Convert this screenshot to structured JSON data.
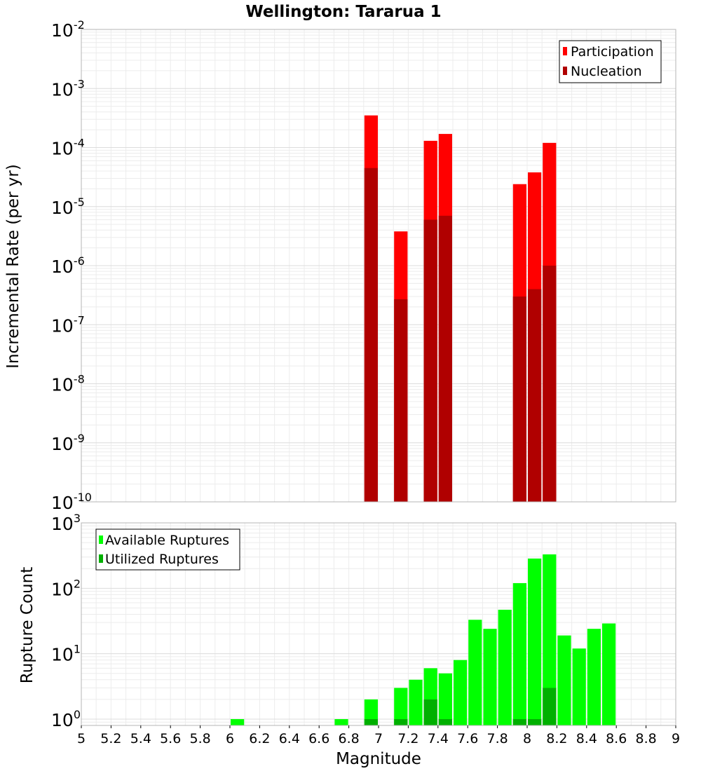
{
  "chart_data": [
    {
      "type": "bar",
      "title": "Wellington: Tararua 1",
      "xlabel": "Magnitude",
      "ylabel": "Incremental Rate (per yr)",
      "y_scale": "log",
      "xlim": [
        5,
        9
      ],
      "ylim": [
        1e-10,
        0.01
      ],
      "grid": true,
      "legend_position": "top-right",
      "y_tick_labels": [
        {
          "base": "10",
          "exp": "-2"
        },
        {
          "base": "10",
          "exp": "-3"
        },
        {
          "base": "10",
          "exp": "-4"
        },
        {
          "base": "10",
          "exp": "-5"
        },
        {
          "base": "10",
          "exp": "-6"
        },
        {
          "base": "10",
          "exp": "-7"
        },
        {
          "base": "10",
          "exp": "-8"
        },
        {
          "base": "10",
          "exp": "-9"
        },
        {
          "base": "10",
          "exp": "-10"
        }
      ],
      "series": [
        {
          "name": "Participation",
          "color": "#ff0000",
          "points": [
            {
              "x": 6.95,
              "y": 0.00035
            },
            {
              "x": 7.15,
              "y": 3.8e-06
            },
            {
              "x": 7.35,
              "y": 0.00013
            },
            {
              "x": 7.45,
              "y": 0.00017
            },
            {
              "x": 7.95,
              "y": 2.4e-05
            },
            {
              "x": 8.05,
              "y": 3.8e-05
            },
            {
              "x": 8.15,
              "y": 0.00012
            }
          ]
        },
        {
          "name": "Nucleation",
          "color": "#b00000",
          "points": [
            {
              "x": 6.95,
              "y": 4.5e-05
            },
            {
              "x": 7.15,
              "y": 2.7e-07
            },
            {
              "x": 7.35,
              "y": 6e-06
            },
            {
              "x": 7.45,
              "y": 7e-06
            },
            {
              "x": 7.95,
              "y": 3e-07
            },
            {
              "x": 8.05,
              "y": 4e-07
            },
            {
              "x": 8.15,
              "y": 1e-06
            }
          ]
        }
      ]
    },
    {
      "type": "bar",
      "xlabel": "Magnitude",
      "ylabel": "Rupture Count",
      "y_scale": "log",
      "xlim": [
        5,
        9
      ],
      "ylim": [
        0.8,
        1000
      ],
      "grid": true,
      "legend_position": "top-left",
      "x_tick_labels": [
        "5",
        "5.2",
        "5.4",
        "5.6",
        "5.8",
        "6",
        "6.2",
        "6.4",
        "6.6",
        "6.8",
        "7",
        "7.2",
        "7.4",
        "7.6",
        "7.8",
        "8",
        "8.2",
        "8.4",
        "8.6",
        "8.8",
        "9"
      ],
      "y_tick_labels": [
        {
          "base": "10",
          "exp": "3"
        },
        {
          "base": "10",
          "exp": "2"
        },
        {
          "base": "10",
          "exp": "1"
        },
        {
          "base": "10",
          "exp": "0"
        }
      ],
      "series": [
        {
          "name": "Available Ruptures",
          "color": "#00ff00",
          "points": [
            {
              "x": 6.05,
              "y": 1
            },
            {
              "x": 6.75,
              "y": 1
            },
            {
              "x": 6.95,
              "y": 2
            },
            {
              "x": 7.15,
              "y": 3
            },
            {
              "x": 7.25,
              "y": 4
            },
            {
              "x": 7.35,
              "y": 6
            },
            {
              "x": 7.45,
              "y": 5
            },
            {
              "x": 7.55,
              "y": 8
            },
            {
              "x": 7.65,
              "y": 33
            },
            {
              "x": 7.75,
              "y": 24
            },
            {
              "x": 7.85,
              "y": 47
            },
            {
              "x": 7.95,
              "y": 120
            },
            {
              "x": 8.05,
              "y": 285
            },
            {
              "x": 8.15,
              "y": 330
            },
            {
              "x": 8.25,
              "y": 19
            },
            {
              "x": 8.35,
              "y": 12
            },
            {
              "x": 8.45,
              "y": 24
            },
            {
              "x": 8.55,
              "y": 29
            }
          ]
        },
        {
          "name": "Utilized Ruptures",
          "color": "#00b000",
          "points": [
            {
              "x": 6.95,
              "y": 1
            },
            {
              "x": 7.15,
              "y": 1
            },
            {
              "x": 7.35,
              "y": 2
            },
            {
              "x": 7.45,
              "y": 1
            },
            {
              "x": 7.95,
              "y": 1
            },
            {
              "x": 8.05,
              "y": 1
            },
            {
              "x": 8.15,
              "y": 3
            }
          ]
        }
      ]
    }
  ]
}
